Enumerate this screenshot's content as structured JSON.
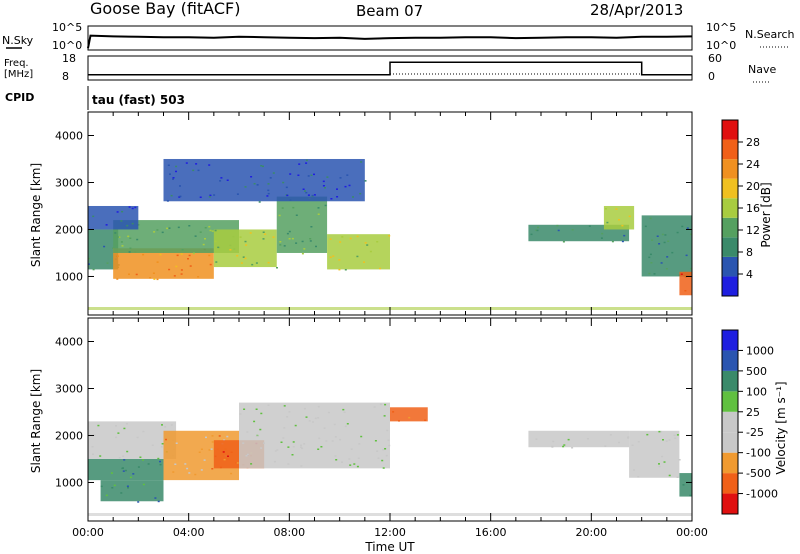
{
  "header": {
    "station": "Goose Bay (fitACF)",
    "beam": "Beam 07",
    "date": "28/Apr/2013"
  },
  "status_panels": {
    "nsky_label": "N.Sky",
    "nsearch_label": "N.Search",
    "noise_ticks": [
      "10^5",
      "10^0"
    ],
    "freq_label": "Freq.",
    "freq_unit": "[MHz]",
    "freq_ticks": [
      "18",
      "8"
    ],
    "nave_label": "Nave",
    "nave_ticks": [
      "60",
      "0"
    ],
    "cpid_label": "CPID",
    "cpid_value": "tau (fast) 503"
  },
  "colors": {
    "power": [
      "#1f1fe0",
      "#2a55b0",
      "#3a8a6a",
      "#55a060",
      "#a8cc40",
      "#f0c020",
      "#f09020",
      "#f06018",
      "#e01010"
    ],
    "velocity": [
      "#e01010",
      "#f06018",
      "#f09a30",
      "#c8c8c8",
      "#c8c8c8",
      "#60c040",
      "#3a8a6a",
      "#2a55b0",
      "#1f1fe0"
    ]
  },
  "chart_data": [
    {
      "type": "line",
      "panel": "noise",
      "series": [
        {
          "name": "N.Sky",
          "x": [
            0,
            0.1,
            1,
            2,
            3,
            4,
            5,
            6,
            7,
            8,
            9,
            10,
            11,
            12,
            13,
            14,
            15,
            16,
            17,
            18,
            19,
            20,
            21,
            22,
            23,
            24
          ],
          "y": [
            0.2,
            3.2,
            3.0,
            2.9,
            2.8,
            2.8,
            2.7,
            2.9,
            2.8,
            2.7,
            2.6,
            2.7,
            2.4,
            2.6,
            2.7,
            2.7,
            2.8,
            2.8,
            2.6,
            2.7,
            2.8,
            2.8,
            2.7,
            2.9,
            2.9,
            3.0
          ]
        }
      ]
    },
    {
      "type": "line",
      "panel": "frequency",
      "series": [
        {
          "name": "Freq.",
          "x": [
            0,
            12,
            12,
            22,
            22,
            24
          ],
          "y": [
            10,
            10,
            16,
            16,
            10,
            10
          ]
        }
      ]
    },
    {
      "type": "heatmap",
      "title": "",
      "xlabel": "Time UT",
      "ylabel": "Slant Range [km]",
      "xlim": [
        0,
        24
      ],
      "ylim": [
        180,
        4500
      ],
      "xticks": [
        "00:00",
        "04:00",
        "08:00",
        "12:00",
        "16:00",
        "20:00",
        "00:00"
      ],
      "yticks": [
        "1000",
        "2000",
        "3000",
        "4000"
      ],
      "colorbar": {
        "label": "Power [dB]",
        "ticks": [
          "4",
          "8",
          "12",
          "16",
          "20",
          "24",
          "28"
        ]
      },
      "regions": [
        {
          "t0": 0.0,
          "t1": 1.2,
          "r0": 1150,
          "r1": 2000,
          "value": 10
        },
        {
          "t0": 1.0,
          "t1": 5.0,
          "r0": 950,
          "r1": 1600,
          "value": 22
        },
        {
          "t0": 1.0,
          "t1": 6.0,
          "r0": 1500,
          "r1": 2200,
          "value": 13
        },
        {
          "t0": 5.0,
          "t1": 7.5,
          "r0": 1200,
          "r1": 2000,
          "value": 15
        },
        {
          "t0": 7.5,
          "t1": 9.5,
          "r0": 1500,
          "r1": 2700,
          "value": 12
        },
        {
          "t0": 9.5,
          "t1": 12.0,
          "r0": 1150,
          "r1": 1900,
          "value": 16
        },
        {
          "t0": 0.0,
          "t1": 2.0,
          "r0": 2000,
          "r1": 2500,
          "value": 6
        },
        {
          "t0": 3.0,
          "t1": 11.0,
          "r0": 2600,
          "r1": 3500,
          "value": 5
        },
        {
          "t0": 17.5,
          "t1": 21.5,
          "r0": 1750,
          "r1": 2100,
          "value": 10
        },
        {
          "t0": 20.5,
          "t1": 21.7,
          "r0": 2000,
          "r1": 2500,
          "value": 17
        },
        {
          "t0": 22.0,
          "t1": 24.0,
          "r0": 1000,
          "r1": 2300,
          "value": 10
        },
        {
          "t0": 23.5,
          "t1": 24.0,
          "r0": 600,
          "r1": 1100,
          "value": 26
        }
      ]
    },
    {
      "type": "heatmap",
      "title": "",
      "xlabel": "Time UT",
      "ylabel": "Slant Range [km]",
      "xlim": [
        0,
        24
      ],
      "ylim": [
        180,
        4500
      ],
      "xticks": [
        "00:00",
        "04:00",
        "08:00",
        "12:00",
        "16:00",
        "20:00",
        "00:00"
      ],
      "yticks": [
        "1000",
        "2000",
        "3000",
        "4000"
      ],
      "colorbar": {
        "label": "Velocity [m s⁻¹]",
        "ticks": [
          "1000",
          "500",
          "100",
          "25",
          "-25",
          "-100",
          "-500",
          "-1000"
        ]
      },
      "regions": [
        {
          "t0": 0.0,
          "t1": 3.0,
          "r0": 1050,
          "r1": 1500,
          "value": 300
        },
        {
          "t0": 0.5,
          "t1": 3.0,
          "r0": 600,
          "r1": 1050,
          "value": 150
        },
        {
          "t0": 0.0,
          "t1": 3.5,
          "r0": 1500,
          "r1": 2300,
          "value": 0
        },
        {
          "t0": 3.0,
          "t1": 6.0,
          "r0": 1050,
          "r1": 2100,
          "value": -150
        },
        {
          "t0": 5.0,
          "t1": 7.0,
          "r0": 1300,
          "r1": 1900,
          "value": -300
        },
        {
          "t0": 6.0,
          "t1": 12.0,
          "r0": 1300,
          "r1": 2700,
          "value": 0
        },
        {
          "t0": 12.0,
          "t1": 13.5,
          "r0": 2300,
          "r1": 2600,
          "value": -300
        },
        {
          "t0": 17.5,
          "t1": 21.5,
          "r0": 1750,
          "r1": 2100,
          "value": 0
        },
        {
          "t0": 21.5,
          "t1": 23.5,
          "r0": 1100,
          "r1": 2100,
          "value": 0
        },
        {
          "t0": 23.5,
          "t1": 24.0,
          "r0": 700,
          "r1": 1200,
          "value": 150
        }
      ]
    }
  ]
}
